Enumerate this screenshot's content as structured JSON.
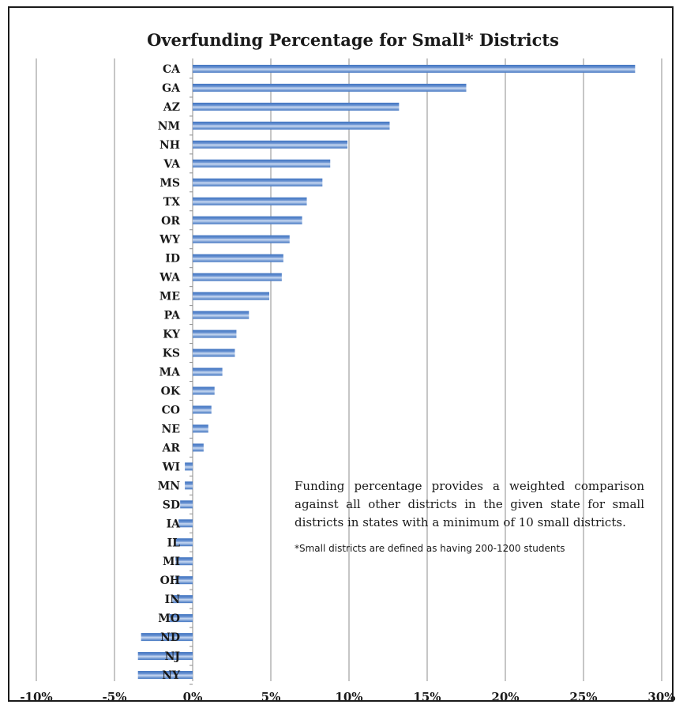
{
  "colors": {
    "bar_dark": "#3f73c0",
    "bar_light": "#c9d9f1",
    "grid": "#8c8c8c",
    "text": "#1a1a1a"
  },
  "note": {
    "text": "Funding percentage provides a weighted comparison against all other districts in the given state for small districts in states with a minimum of 10 small districts.",
    "footnote": "*Small districts are defined as having 200-1200 students"
  },
  "chart_data": {
    "type": "bar",
    "orientation": "horizontal",
    "title": "Overfunding Percentage for Small* Districts",
    "xlabel": "",
    "ylabel": "",
    "xlim": [
      -10,
      30
    ],
    "xticks": [
      -10,
      -5,
      0,
      5,
      10,
      15,
      20,
      25,
      30
    ],
    "xtick_labels": [
      "-10%",
      "-5%",
      "0%",
      "5%",
      "10%",
      "15%",
      "20%",
      "25%",
      "30%"
    ],
    "grid": "vertical",
    "legend": "none",
    "categories": [
      "CA",
      "GA",
      "AZ",
      "NM",
      "NH",
      "VA",
      "MS",
      "TX",
      "OR",
      "WY",
      "ID",
      "WA",
      "ME",
      "PA",
      "KY",
      "KS",
      "MA",
      "OK",
      "CO",
      "NE",
      "AR",
      "WI",
      "MN",
      "SD",
      "IA",
      "IL",
      "MI",
      "OH",
      "IN",
      "MO",
      "ND",
      "NJ",
      "NY"
    ],
    "values": [
      28.3,
      17.5,
      13.2,
      12.6,
      9.9,
      8.8,
      8.3,
      7.3,
      7.0,
      6.2,
      5.8,
      5.7,
      4.9,
      3.6,
      2.8,
      2.7,
      1.9,
      1.4,
      1.2,
      1.0,
      0.7,
      -0.5,
      -0.5,
      -0.8,
      -0.9,
      -1.1,
      -1.1,
      -1.1,
      -1.3,
      -1.5,
      -3.3,
      -3.5,
      -3.5
    ]
  }
}
